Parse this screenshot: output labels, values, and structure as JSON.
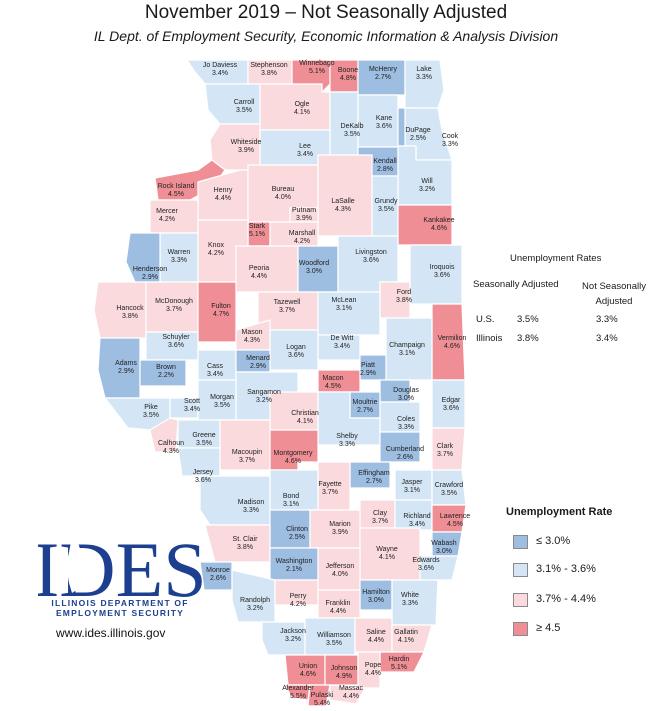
{
  "header": {
    "title": "November 2019 – Not Seasonally Adjusted",
    "subtitle": "IL Dept. of Employment Security, Economic Information & Analysis Division"
  },
  "colors": {
    "le_3_0": "#9dbde1",
    "r_3_1_3_6": "#d4e6f5",
    "r_3_7_4_4": "#fadadd",
    "ge_4_5": "#ef8f95",
    "border": "#ffffff",
    "logo_blue": "#1d3f8f"
  },
  "rates_table": {
    "title": "Unemployment Rates",
    "col_sa": "Seasonally Adjusted",
    "col_nsa": "Not Seasonally Adjusted",
    "rows": [
      {
        "area": "U.S.",
        "sa": "3.5%",
        "nsa": "3.3%"
      },
      {
        "area": "Illinois",
        "sa": "3.8%",
        "nsa": "3.4%"
      }
    ]
  },
  "legend": {
    "title": "Unemployment Rate",
    "items": [
      {
        "label": "≤ 3.0%",
        "color_key": "le_3_0"
      },
      {
        "label": "3.1% - 3.6%",
        "color_key": "r_3_1_3_6"
      },
      {
        "label": "3.7% - 4.4%",
        "color_key": "r_3_7_4_4"
      },
      {
        "label": "≥ 4.5",
        "color_key": "ge_4_5"
      }
    ]
  },
  "logo": {
    "wordmark": "IDES",
    "line1": "ILLINOIS DEPARTMENT OF",
    "line2": "EMPLOYMENT SECURITY",
    "url": "www.ides.illinois.gov"
  },
  "counties": [
    {
      "name": "Jo Daviess",
      "rate": "3.4%",
      "cat": "r_3_1_3_6"
    },
    {
      "name": "Stephenson",
      "rate": "3.8%",
      "cat": "r_3_7_4_4"
    },
    {
      "name": "Winnebago",
      "rate": "5.1%",
      "cat": "ge_4_5"
    },
    {
      "name": "Boone",
      "rate": "4.8%",
      "cat": "ge_4_5"
    },
    {
      "name": "McHenry",
      "rate": "2.7%",
      "cat": "le_3_0"
    },
    {
      "name": "Lake",
      "rate": "3.3%",
      "cat": "r_3_1_3_6"
    },
    {
      "name": "Carroll",
      "rate": "3.5%",
      "cat": "r_3_1_3_6"
    },
    {
      "name": "Ogle",
      "rate": "4.1%",
      "cat": "r_3_7_4_4"
    },
    {
      "name": "DeKalb",
      "rate": "3.5%",
      "cat": "r_3_1_3_6"
    },
    {
      "name": "Kane",
      "rate": "3.6%",
      "cat": "r_3_1_3_6"
    },
    {
      "name": "DuPage",
      "rate": "2.5%",
      "cat": "le_3_0"
    },
    {
      "name": "Cook",
      "rate": "3.3%",
      "cat": "r_3_1_3_6"
    },
    {
      "name": "Whiteside",
      "rate": "3.9%",
      "cat": "r_3_7_4_4"
    },
    {
      "name": "Lee",
      "rate": "3.4%",
      "cat": "r_3_1_3_6"
    },
    {
      "name": "Kendall",
      "rate": "2.8%",
      "cat": "le_3_0"
    },
    {
      "name": "Will",
      "rate": "3.2%",
      "cat": "r_3_1_3_6"
    },
    {
      "name": "Rock Island",
      "rate": "4.5%",
      "cat": "ge_4_5"
    },
    {
      "name": "Henry",
      "rate": "4.4%",
      "cat": "r_3_7_4_4"
    },
    {
      "name": "Bureau",
      "rate": "4.0%",
      "cat": "r_3_7_4_4"
    },
    {
      "name": "LaSalle",
      "rate": "4.3%",
      "cat": "r_3_7_4_4"
    },
    {
      "name": "Grundy",
      "rate": "3.5%",
      "cat": "r_3_1_3_6"
    },
    {
      "name": "Mercer",
      "rate": "4.2%",
      "cat": "r_3_7_4_4"
    },
    {
      "name": "Putnam",
      "rate": "3.9%",
      "cat": "r_3_7_4_4"
    },
    {
      "name": "Stark",
      "rate": "5.1%",
      "cat": "ge_4_5"
    },
    {
      "name": "Marshall",
      "rate": "4.2%",
      "cat": "r_3_7_4_4"
    },
    {
      "name": "Kankakee",
      "rate": "4.6%",
      "cat": "ge_4_5"
    },
    {
      "name": "Warren",
      "rate": "3.3%",
      "cat": "r_3_1_3_6"
    },
    {
      "name": "Knox",
      "rate": "4.2%",
      "cat": "r_3_7_4_4"
    },
    {
      "name": "Henderson",
      "rate": "2.9%",
      "cat": "le_3_0"
    },
    {
      "name": "Peoria",
      "rate": "4.4%",
      "cat": "r_3_7_4_4"
    },
    {
      "name": "Woodford",
      "rate": "3.0%",
      "cat": "le_3_0"
    },
    {
      "name": "Livingston",
      "rate": "3.6%",
      "cat": "r_3_1_3_6"
    },
    {
      "name": "Iroquois",
      "rate": "3.6%",
      "cat": "r_3_1_3_6"
    },
    {
      "name": "Ford",
      "rate": "3.8%",
      "cat": "r_3_7_4_4"
    },
    {
      "name": "Hancock",
      "rate": "3.8%",
      "cat": "r_3_7_4_4"
    },
    {
      "name": "McDonough",
      "rate": "3.7%",
      "cat": "r_3_7_4_4"
    },
    {
      "name": "Fulton",
      "rate": "4.7%",
      "cat": "ge_4_5"
    },
    {
      "name": "Tazewell",
      "rate": "3.7%",
      "cat": "r_3_7_4_4"
    },
    {
      "name": "McLean",
      "rate": "3.1%",
      "cat": "r_3_1_3_6"
    },
    {
      "name": "Vermilion",
      "rate": "4.6%",
      "cat": "ge_4_5"
    },
    {
      "name": "Schuyler",
      "rate": "3.6%",
      "cat": "r_3_1_3_6"
    },
    {
      "name": "Mason",
      "rate": "4.3%",
      "cat": "r_3_7_4_4"
    },
    {
      "name": "Logan",
      "rate": "3.6%",
      "cat": "r_3_1_3_6"
    },
    {
      "name": "De Witt",
      "rate": "3.4%",
      "cat": "r_3_1_3_6"
    },
    {
      "name": "Champaign",
      "rate": "3.1%",
      "cat": "r_3_1_3_6"
    },
    {
      "name": "Adams",
      "rate": "2.9%",
      "cat": "le_3_0"
    },
    {
      "name": "Brown",
      "rate": "2.2%",
      "cat": "le_3_0"
    },
    {
      "name": "Cass",
      "rate": "3.4%",
      "cat": "r_3_1_3_6"
    },
    {
      "name": "Menard",
      "rate": "2.9%",
      "cat": "le_3_0"
    },
    {
      "name": "Piatt",
      "rate": "2.9%",
      "cat": "le_3_0"
    },
    {
      "name": "Macon",
      "rate": "4.5%",
      "cat": "ge_4_5"
    },
    {
      "name": "Sangamon",
      "rate": "3.2%",
      "cat": "r_3_1_3_6"
    },
    {
      "name": "Douglas",
      "rate": "3.0%",
      "cat": "le_3_0"
    },
    {
      "name": "Pike",
      "rate": "3.5%",
      "cat": "r_3_1_3_6"
    },
    {
      "name": "Scott",
      "rate": "3.4%",
      "cat": "r_3_1_3_6"
    },
    {
      "name": "Morgan",
      "rate": "3.5%",
      "cat": "r_3_1_3_6"
    },
    {
      "name": "Moultrie",
      "rate": "2.7%",
      "cat": "le_3_0"
    },
    {
      "name": "Edgar",
      "rate": "3.6%",
      "cat": "r_3_1_3_6"
    },
    {
      "name": "Christian",
      "rate": "4.1%",
      "cat": "r_3_7_4_4"
    },
    {
      "name": "Coles",
      "rate": "3.3%",
      "cat": "r_3_1_3_6"
    },
    {
      "name": "Calhoun",
      "rate": "4.3%",
      "cat": "r_3_7_4_4"
    },
    {
      "name": "Greene",
      "rate": "3.5%",
      "cat": "r_3_1_3_6"
    },
    {
      "name": "Shelby",
      "rate": "3.3%",
      "cat": "r_3_1_3_6"
    },
    {
      "name": "Clark",
      "rate": "3.7%",
      "cat": "r_3_7_4_4"
    },
    {
      "name": "Macoupin",
      "rate": "3.7%",
      "cat": "r_3_7_4_4"
    },
    {
      "name": "Montgomery",
      "rate": "4.6%",
      "cat": "ge_4_5"
    },
    {
      "name": "Cumberland",
      "rate": "2.6%",
      "cat": "le_3_0"
    },
    {
      "name": "Jersey",
      "rate": "3.6%",
      "cat": "r_3_1_3_6"
    },
    {
      "name": "Effingham",
      "rate": "2.7%",
      "cat": "le_3_0"
    },
    {
      "name": "Fayette",
      "rate": "3.7%",
      "cat": "r_3_7_4_4"
    },
    {
      "name": "Jasper",
      "rate": "3.1%",
      "cat": "r_3_1_3_6"
    },
    {
      "name": "Crawford",
      "rate": "3.5%",
      "cat": "r_3_1_3_6"
    },
    {
      "name": "Bond",
      "rate": "3.1%",
      "cat": "r_3_1_3_6"
    },
    {
      "name": "Madison",
      "rate": "3.3%",
      "cat": "r_3_1_3_6"
    },
    {
      "name": "Clay",
      "rate": "3.7%",
      "cat": "r_3_7_4_4"
    },
    {
      "name": "Richland",
      "rate": "3.4%",
      "cat": "r_3_1_3_6"
    },
    {
      "name": "Lawrence",
      "rate": "4.5%",
      "cat": "ge_4_5"
    },
    {
      "name": "Clinton",
      "rate": "2.5%",
      "cat": "le_3_0"
    },
    {
      "name": "Marion",
      "rate": "3.9%",
      "cat": "r_3_7_4_4"
    },
    {
      "name": "St. Clair",
      "rate": "3.8%",
      "cat": "r_3_7_4_4"
    },
    {
      "name": "Washington",
      "rate": "2.1%",
      "cat": "le_3_0"
    },
    {
      "name": "Wabash",
      "rate": "3.0%",
      "cat": "le_3_0"
    },
    {
      "name": "Edwards",
      "rate": "3.6%",
      "cat": "r_3_1_3_6"
    },
    {
      "name": "Wayne",
      "rate": "4.1%",
      "cat": "r_3_7_4_4"
    },
    {
      "name": "Monroe",
      "rate": "2.6%",
      "cat": "le_3_0"
    },
    {
      "name": "Jefferson",
      "rate": "4.0%",
      "cat": "r_3_7_4_4"
    },
    {
      "name": "Randolph",
      "rate": "3.2%",
      "cat": "r_3_1_3_6"
    },
    {
      "name": "Perry",
      "rate": "4.2%",
      "cat": "r_3_7_4_4"
    },
    {
      "name": "Hamilton",
      "rate": "3.0%",
      "cat": "le_3_0"
    },
    {
      "name": "White",
      "rate": "3.3%",
      "cat": "r_3_1_3_6"
    },
    {
      "name": "Franklin",
      "rate": "4.4%",
      "cat": "r_3_7_4_4"
    },
    {
      "name": "Jackson",
      "rate": "3.2%",
      "cat": "r_3_1_3_6"
    },
    {
      "name": "Williamson",
      "rate": "3.5%",
      "cat": "r_3_1_3_6"
    },
    {
      "name": "Saline",
      "rate": "4.4%",
      "cat": "r_3_7_4_4"
    },
    {
      "name": "Gallatin",
      "rate": "4.1%",
      "cat": "r_3_7_4_4"
    },
    {
      "name": "Hardin",
      "rate": "5.1%",
      "cat": "ge_4_5"
    },
    {
      "name": "Union",
      "rate": "4.6%",
      "cat": "ge_4_5"
    },
    {
      "name": "Johnson",
      "rate": "4.9%",
      "cat": "ge_4_5"
    },
    {
      "name": "Pope",
      "rate": "4.4%",
      "cat": "r_3_7_4_4"
    },
    {
      "name": "Alexander",
      "rate": "5.5%",
      "cat": "ge_4_5"
    },
    {
      "name": "Pulaski",
      "rate": "5.4%",
      "cat": "ge_4_5"
    },
    {
      "name": "Massac",
      "rate": "4.4%",
      "cat": "r_3_7_4_4"
    }
  ]
}
